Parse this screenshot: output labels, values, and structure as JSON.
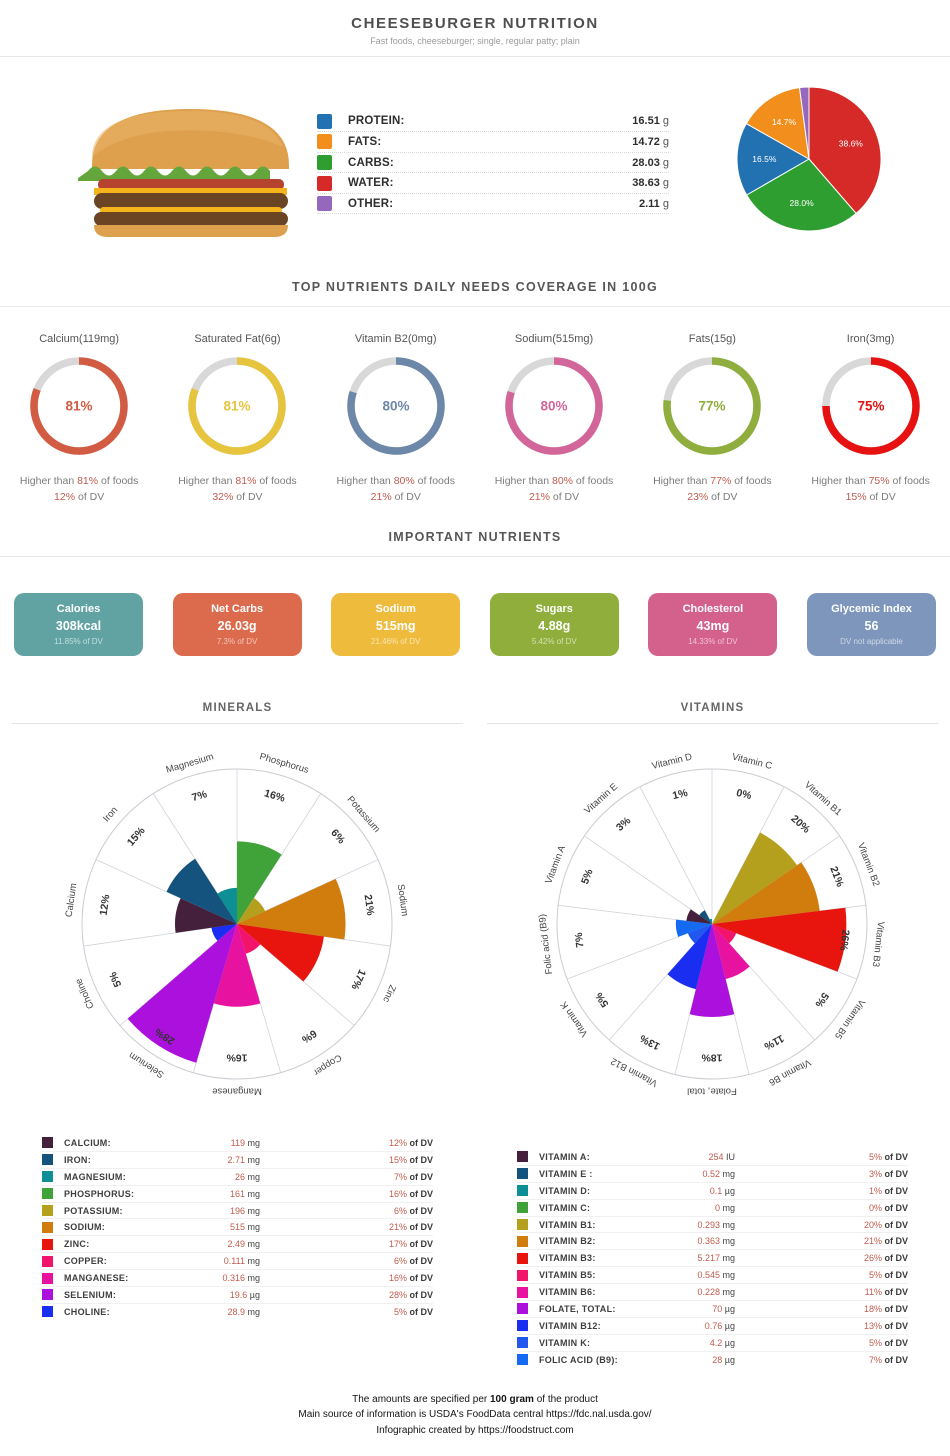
{
  "header": {
    "title": "CHEESEBURGER NUTRITION",
    "subtitle": "Fast foods, cheeseburger; single, regular patty; plain"
  },
  "macros": {
    "legend": [
      {
        "label": "PROTEIN:",
        "value": "16.51",
        "unit": "g",
        "color": "#2272b2"
      },
      {
        "label": "FATS:",
        "value": "14.72",
        "unit": "g",
        "color": "#f28e1c"
      },
      {
        "label": "CARBS:",
        "value": "28.03",
        "unit": "g",
        "color": "#2e9e30"
      },
      {
        "label": "WATER:",
        "value": "38.63",
        "unit": "g",
        "color": "#d62a28"
      },
      {
        "label": "OTHER:",
        "value": "2.11",
        "unit": "g",
        "color": "#9468bd"
      }
    ]
  },
  "chart_data": [
    {
      "type": "pie",
      "name": "macronutrient-breakdown",
      "labels": [
        "Water",
        "Carbs",
        "Protein",
        "Fats",
        "Other"
      ],
      "values": [
        38.6,
        28.0,
        16.5,
        14.7,
        2.1
      ],
      "display_labels": [
        "38.6%",
        "28.0%",
        "16.5%",
        "14.7%",
        ""
      ],
      "colors": [
        "#d62a28",
        "#2e9e30",
        "#2272b2",
        "#f28e1c",
        "#9468bd"
      ],
      "start": "top",
      "direction": "clockwise"
    },
    {
      "type": "polar",
      "name": "minerals-daily-value",
      "title": "MINERALS",
      "rmax": 30,
      "start": "top",
      "direction": "clockwise",
      "categories": [
        "Phosphorus",
        "Potassium",
        "Sodium",
        "Zinc",
        "Copper",
        "Manganese",
        "Selenium",
        "Choline",
        "Calcium",
        "Iron",
        "Magnesium"
      ],
      "values": [
        16,
        6,
        21,
        17,
        6,
        16,
        28,
        5,
        12,
        15,
        7
      ],
      "value_labels": [
        "16%",
        "6%",
        "21%",
        "17%",
        "6%",
        "16%",
        "28%",
        "5%",
        "12%",
        "15%",
        "7%"
      ],
      "colors": [
        "#3fa33a",
        "#b5a01e",
        "#d07d0e",
        "#e8150f",
        "#f2136b",
        "#e812a0",
        "#ab10dc",
        "#1a2ef2",
        "#44203c",
        "#14537d",
        "#0e8f96"
      ]
    },
    {
      "type": "polar",
      "name": "vitamins-daily-value",
      "title": "VITAMINS",
      "rmax": 30,
      "start": "top",
      "direction": "clockwise",
      "categories": [
        "Vitamin C",
        "Vitamin B1",
        "Vitamin B2",
        "Vitamin B3",
        "Vitamin B5",
        "Vitamin B6",
        "Folate, total",
        "Vitamin B12",
        "Vitamin K",
        "Folic acid (B9)",
        "Vitamin A",
        "Vitamin E",
        "Vitamin D"
      ],
      "values": [
        0,
        20,
        21,
        26,
        5,
        11,
        18,
        13,
        5,
        7,
        5,
        3,
        1
      ],
      "value_labels": [
        "0%",
        "20%",
        "21%",
        "26%",
        "5%",
        "11%",
        "18%",
        "13%",
        "5%",
        "7%",
        "5%",
        "3%",
        "1%"
      ],
      "colors": [
        "#3fa33a",
        "#b5a01e",
        "#d07d0e",
        "#e8150f",
        "#f2136b",
        "#e812a0",
        "#ab10dc",
        "#1a2ef2",
        "#2157ee",
        "#146af2",
        "#44203c",
        "#14537d",
        "#0e8f96"
      ]
    }
  ],
  "gauges_section": {
    "title": "TOP NUTRIENTS DAILY NEEDS COVERAGE IN 100G",
    "caption_prefix": "Higher than",
    "caption_suffix": "of foods",
    "dv_suffix": "of DV",
    "gauges": [
      {
        "label": "Calcium(119mg)",
        "percent": "81%",
        "dv": "12%",
        "color": "#d15c43"
      },
      {
        "label": "Saturated Fat(6g)",
        "percent": "81%",
        "dv": "32%",
        "color": "#e6c43e"
      },
      {
        "label": "Vitamin B2(0mg)",
        "percent": "80%",
        "dv": "21%",
        "color": "#6d87a8"
      },
      {
        "label": "Sodium(515mg)",
        "percent": "80%",
        "dv": "21%",
        "color": "#d2659a"
      },
      {
        "label": "Fats(15g)",
        "percent": "77%",
        "dv": "23%",
        "color": "#8fae3e"
      },
      {
        "label": "Iron(3mg)",
        "percent": "75%",
        "dv": "15%",
        "color": "#e51211"
      }
    ]
  },
  "cards_section": {
    "title": "IMPORTANT NUTRIENTS",
    "cards": [
      {
        "title": "Calories",
        "value": "308kcal",
        "sub": "11.85% of DV",
        "color": "#61a3a3"
      },
      {
        "title": "Net Carbs",
        "value": "26.03g",
        "sub": "7.3% of DV",
        "color": "#dc6a4c"
      },
      {
        "title": "Sodium",
        "value": "515mg",
        "sub": "21.46% of DV",
        "color": "#eebb3d"
      },
      {
        "title": "Sugars",
        "value": "4.88g",
        "sub": "5.42% of DV",
        "color": "#8fae3c"
      },
      {
        "title": "Cholesterol",
        "value": "43mg",
        "sub": "14.33% of DV",
        "color": "#d4608c"
      },
      {
        "title": "Glycemic Index",
        "value": "56",
        "sub": "DV not applicable",
        "color": "#7e96bb"
      }
    ]
  },
  "minerals": {
    "title": "MINERALS",
    "dv_suffix": "of DV",
    "table": [
      {
        "name": "CALCIUM:",
        "value": "119",
        "unit": "mg",
        "dv": "12%",
        "color": "#44203c"
      },
      {
        "name": "IRON:",
        "value": "2.71",
        "unit": "mg",
        "dv": "15%",
        "color": "#14537d"
      },
      {
        "name": "MAGNESIUM:",
        "value": "26",
        "unit": "mg",
        "dv": "7%",
        "color": "#0e8f96"
      },
      {
        "name": "PHOSPHORUS:",
        "value": "161",
        "unit": "mg",
        "dv": "16%",
        "color": "#3fa33a"
      },
      {
        "name": "POTASSIUM:",
        "value": "196",
        "unit": "mg",
        "dv": "6%",
        "color": "#b5a01e"
      },
      {
        "name": "SODIUM:",
        "value": "515",
        "unit": "mg",
        "dv": "21%",
        "color": "#d07d0e"
      },
      {
        "name": "ZINC:",
        "value": "2.49",
        "unit": "mg",
        "dv": "17%",
        "color": "#e8150f"
      },
      {
        "name": "COPPER:",
        "value": "0.111",
        "unit": "mg",
        "dv": "6%",
        "color": "#f2136b"
      },
      {
        "name": "MANGANESE:",
        "value": "0.316",
        "unit": "mg",
        "dv": "16%",
        "color": "#e812a0"
      },
      {
        "name": "SELENIUM:",
        "value": "19.6",
        "unit": "µg",
        "dv": "28%",
        "color": "#ab10dc"
      },
      {
        "name": "CHOLINE:",
        "value": "28.9",
        "unit": "mg",
        "dv": "5%",
        "color": "#1a2ef2"
      }
    ]
  },
  "vitamins": {
    "title": "VITAMINS",
    "dv_suffix": "of DV",
    "table": [
      {
        "name": "VITAMIN A:",
        "value": "254",
        "unit": "IU",
        "dv": "5%",
        "color": "#44203c"
      },
      {
        "name": "VITAMIN E :",
        "value": "0.52",
        "unit": "mg",
        "dv": "3%",
        "color": "#14537d"
      },
      {
        "name": "VITAMIN D:",
        "value": "0.1",
        "unit": "µg",
        "dv": "1%",
        "color": "#0e8f96"
      },
      {
        "name": "VITAMIN C:",
        "value": "0",
        "unit": "mg",
        "dv": "0%",
        "color": "#3fa33a"
      },
      {
        "name": "VITAMIN B1:",
        "value": "0.293",
        "unit": "mg",
        "dv": "20%",
        "color": "#b5a01e"
      },
      {
        "name": "VITAMIN B2:",
        "value": "0.363",
        "unit": "mg",
        "dv": "21%",
        "color": "#d07d0e"
      },
      {
        "name": "VITAMIN B3:",
        "value": "5.217",
        "unit": "mg",
        "dv": "26%",
        "color": "#e8150f"
      },
      {
        "name": "VITAMIN B5:",
        "value": "0.545",
        "unit": "mg",
        "dv": "5%",
        "color": "#f2136b"
      },
      {
        "name": "VITAMIN B6:",
        "value": "0.228",
        "unit": "mg",
        "dv": "11%",
        "color": "#e812a0"
      },
      {
        "name": "FOLATE, TOTAL:",
        "value": "70",
        "unit": "µg",
        "dv": "18%",
        "color": "#ab10dc"
      },
      {
        "name": "VITAMIN B12:",
        "value": "0.76",
        "unit": "µg",
        "dv": "13%",
        "color": "#1a2ef2"
      },
      {
        "name": "VITAMIN K:",
        "value": "4.2",
        "unit": "µg",
        "dv": "5%",
        "color": "#2157ee"
      },
      {
        "name": "FOLIC ACID (B9):",
        "value": "28",
        "unit": "µg",
        "dv": "7%",
        "color": "#146af2"
      }
    ]
  },
  "footer": {
    "line1_prefix": "The amounts are specified per ",
    "line1_bold": "100 gram",
    "line1_suffix": " of the product",
    "line2": "Main source of information is USDA's FoodData central https://fdc.nal.usda.gov/",
    "line3": "Infographic created by https://foodstruct.com"
  }
}
